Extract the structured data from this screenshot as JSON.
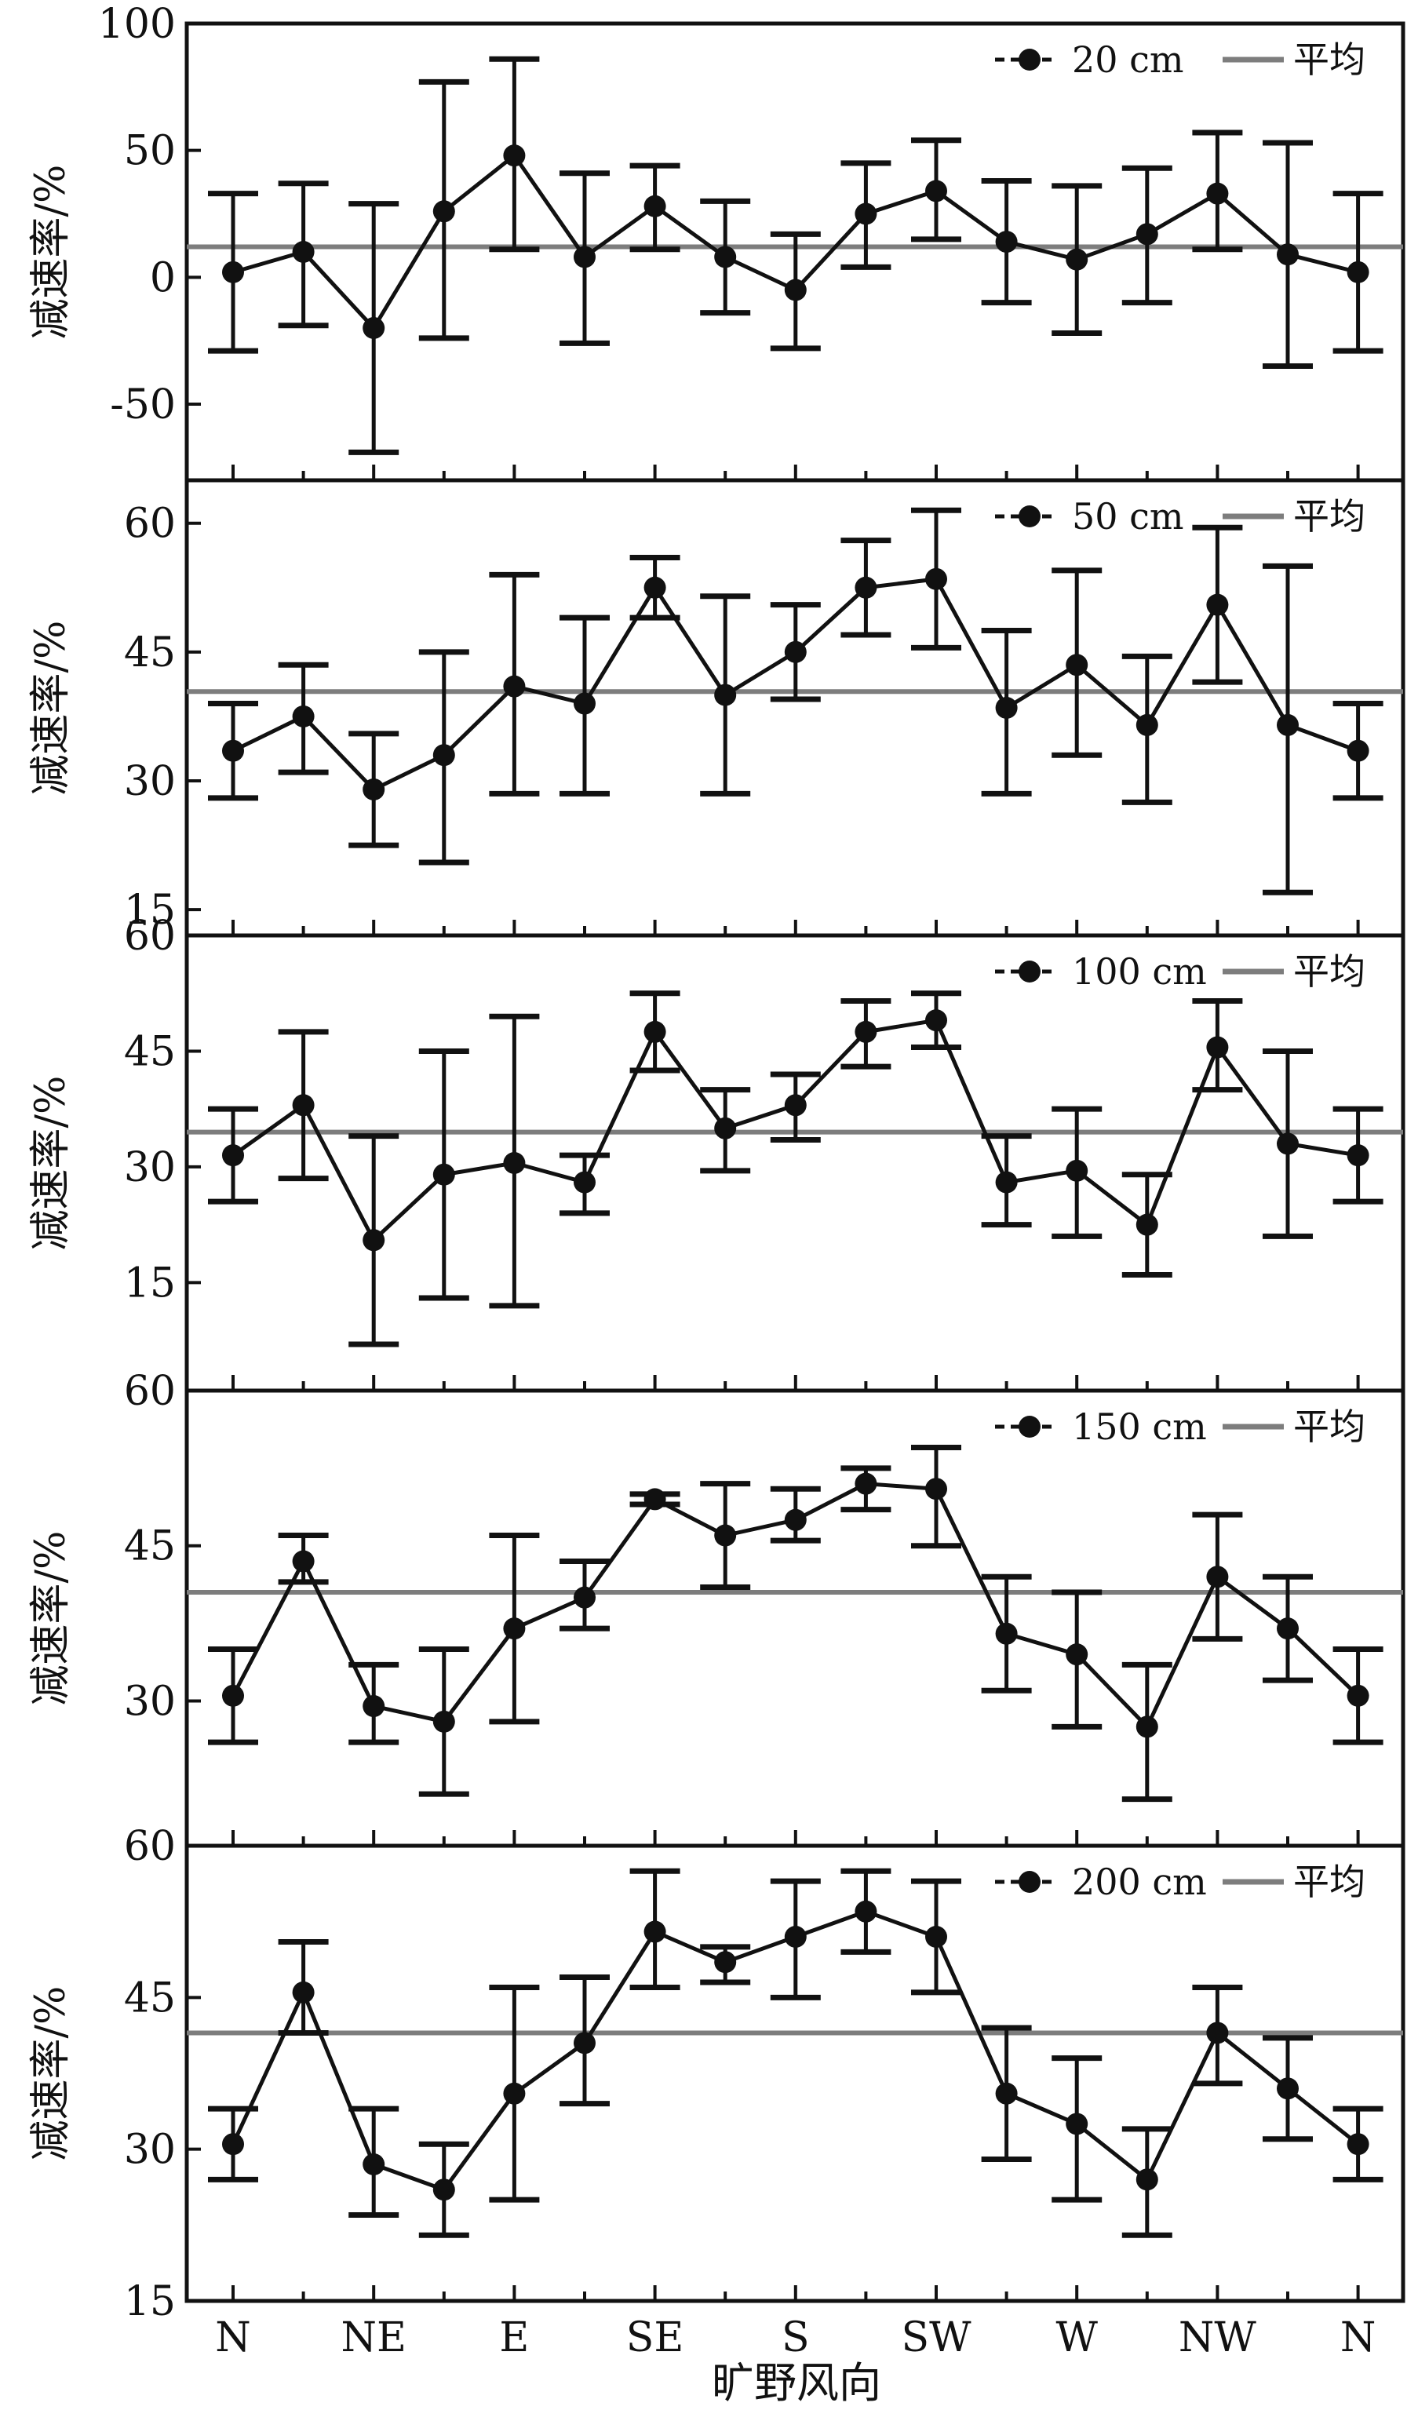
{
  "chart_data": {
    "type": "line",
    "shared_x_labels": [
      "N",
      "NE",
      "E",
      "SE",
      "S",
      "SW",
      "W",
      "NW",
      "N"
    ],
    "xlabel": "旷野风向",
    "panels": [
      {
        "ylabel": "减速率/%",
        "ylim": [
          -80,
          100
        ],
        "yticks": [
          -50,
          0,
          50,
          100
        ],
        "ytick_labels": [
          "-50",
          "0",
          "50",
          "100"
        ],
        "mean": 12,
        "legend": {
          "series": "20 cm",
          "mean": "平均"
        },
        "series": {
          "name": "20 cm",
          "values": [
            2,
            10,
            -20,
            26,
            48,
            8,
            28,
            8,
            -5,
            25,
            34,
            14,
            7,
            17,
            33,
            9,
            2
          ],
          "err_low": [
            -29,
            -19,
            -69,
            -24,
            11,
            -26,
            11,
            -14,
            -28,
            4,
            15,
            -10,
            -22,
            -10,
            11,
            -35,
            -29
          ],
          "err_high": [
            33,
            37,
            29,
            77,
            86,
            41,
            44,
            30,
            17,
            45,
            54,
            38,
            36,
            43,
            57,
            53,
            33
          ]
        }
      },
      {
        "ylabel": "减速率/%",
        "ylim": [
          12,
          65
        ],
        "yticks": [
          15,
          30,
          45,
          60
        ],
        "ytick_labels": [
          "15",
          "30",
          "45",
          "60"
        ],
        "mean": 40.4,
        "legend": {
          "series": "50 cm",
          "mean": "平均"
        },
        "series": {
          "name": "50 cm",
          "values": [
            33.5,
            37.5,
            29,
            33,
            41,
            39,
            52.5,
            40,
            45,
            52.5,
            53.5,
            38.5,
            43.5,
            36.5,
            50.5,
            36.5,
            33.5
          ],
          "err_low": [
            28,
            31,
            22.5,
            20.5,
            28.5,
            28.5,
            49,
            28.5,
            39.5,
            47,
            45.5,
            28.5,
            33,
            27.5,
            41.5,
            17,
            28
          ],
          "err_high": [
            39,
            43.5,
            35.5,
            45,
            54,
            49,
            56,
            51.5,
            50.5,
            58,
            61.5,
            47.5,
            54.5,
            44.5,
            59.5,
            55,
            39
          ]
        }
      },
      {
        "ylabel": "减速率/%",
        "ylim": [
          1,
          60
        ],
        "yticks": [
          15,
          30,
          45,
          60
        ],
        "ytick_labels": [
          "15",
          "30",
          "45",
          "60"
        ],
        "mean": 34.5,
        "legend": {
          "series": "100 cm",
          "mean": "平均"
        },
        "series": {
          "name": "100 cm",
          "values": [
            31.5,
            38,
            20.5,
            29,
            30.5,
            28,
            47.5,
            35,
            38,
            47.5,
            49,
            28,
            29.5,
            22.5,
            45.5,
            33,
            31.5
          ],
          "err_low": [
            25.5,
            28.5,
            7,
            13,
            12,
            24,
            42.5,
            29.5,
            33.5,
            43,
            45.5,
            22.5,
            21,
            16,
            40,
            21,
            25.5
          ],
          "err_high": [
            37.5,
            47.5,
            34,
            45,
            49.5,
            31.5,
            52.5,
            40,
            42,
            51.5,
            52.5,
            34,
            37.5,
            29,
            51.5,
            45,
            37.5
          ]
        }
      },
      {
        "ylabel": "减速率/%",
        "ylim": [
          16,
          60
        ],
        "yticks": [
          30,
          45,
          60
        ],
        "ytick_labels": [
          "30",
          "45",
          "60"
        ],
        "mean": 40.5,
        "legend": {
          "series": "150 cm",
          "mean": "平均"
        },
        "series": {
          "name": "150 cm",
          "values": [
            30.5,
            43.5,
            29.5,
            28,
            37,
            40,
            49.5,
            46,
            47.5,
            51,
            50.5,
            36.5,
            34.5,
            27.5,
            42,
            37,
            30.5
          ],
          "err_low": [
            26,
            41.5,
            26,
            21,
            28,
            37,
            49,
            41,
            45.5,
            48.5,
            45,
            31,
            27.5,
            20.5,
            36,
            32,
            26
          ],
          "err_high": [
            35,
            46,
            33.5,
            35,
            46,
            43.5,
            50,
            51,
            50.5,
            52.5,
            54.5,
            42,
            40.5,
            33.5,
            48,
            42,
            35
          ]
        }
      },
      {
        "ylabel": "减速率/%",
        "ylim": [
          15,
          60
        ],
        "yticks": [
          15,
          30,
          45,
          60
        ],
        "ytick_labels": [
          "15",
          "30",
          "45",
          "60"
        ],
        "mean": 41.5,
        "legend": {
          "series": "200 cm",
          "mean": "平均"
        },
        "series": {
          "name": "200 cm",
          "values": [
            30.5,
            45.5,
            28.5,
            26,
            35.5,
            40.5,
            51.5,
            48.5,
            51,
            53.5,
            51,
            35.5,
            32.5,
            27,
            41.5,
            36,
            30.5
          ],
          "err_low": [
            27,
            41.5,
            23.5,
            21.5,
            25,
            34.5,
            46,
            46.5,
            45,
            49.5,
            45.5,
            29,
            25,
            21.5,
            36.5,
            31,
            27
          ],
          "err_high": [
            34,
            50.5,
            34,
            30.5,
            46,
            47,
            57.5,
            50,
            56.5,
            57.5,
            56.5,
            42,
            39,
            32,
            46,
            41,
            34
          ]
        }
      }
    ]
  }
}
